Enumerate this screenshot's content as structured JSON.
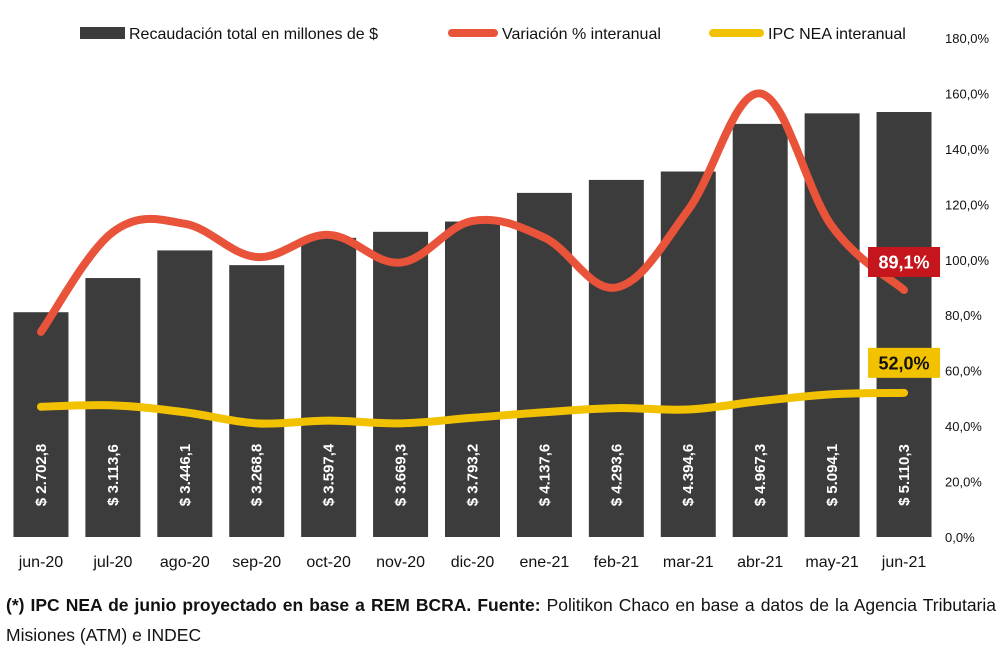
{
  "chart_data": {
    "type": "bar",
    "categories": [
      "jun-20",
      "jul-20",
      "ago-20",
      "sep-20",
      "oct-20",
      "nov-20",
      "dic-20",
      "ene-21",
      "feb-21",
      "mar-21",
      "abr-21",
      "may-21",
      "jun-21"
    ],
    "series": [
      {
        "name": "Recaudación total en millones de $",
        "kind": "bar",
        "color": "#3c3c3c",
        "values": [
          2702.8,
          3113.6,
          3446.1,
          3268.8,
          3597.4,
          3669.3,
          3793.2,
          4137.6,
          4293.6,
          4394.6,
          4967.3,
          5094.1,
          5110.3
        ],
        "labels": [
          "$ 2.702,8",
          "$ 3.113,6",
          "$ 3.446,1",
          "$ 3.268,8",
          "$ 3.597,4",
          "$ 3.669,3",
          "$ 3.793,2",
          "$ 4.137,6",
          "$ 4.293,6",
          "$ 4.394,6",
          "$ 4.967,3",
          "$ 5.094,1",
          "$ 5.110,3"
        ]
      },
      {
        "name": "Variación % interanual",
        "kind": "line",
        "axis": "right",
        "color": "#e8533a",
        "values": [
          74,
          110,
          113,
          101,
          109,
          99,
          114,
          108,
          90,
          118,
          160,
          112,
          89.1
        ]
      },
      {
        "name": "IPC NEA interanual",
        "kind": "line",
        "axis": "right",
        "color": "#f2c200",
        "values": [
          47,
          47.5,
          45,
          41,
          42,
          41,
          43,
          45,
          46.5,
          46,
          49,
          51.5,
          52
        ]
      }
    ],
    "left_axis": {
      "min": 0,
      "max": 6000
    },
    "right_axis": {
      "min": 0,
      "max": 180,
      "ticks": [
        "0,0%",
        "20,0%",
        "40,0%",
        "60,0%",
        "80,0%",
        "100,0%",
        "120,0%",
        "140,0%",
        "160,0%",
        "180,0%"
      ]
    },
    "callouts": [
      {
        "text": "89,1%",
        "series": 1,
        "index": 12,
        "bg": "#c4161c",
        "fg": "#ffffff"
      },
      {
        "text": "52,0%",
        "series": 2,
        "index": 12,
        "bg": "#f2c200",
        "fg": "#111111"
      }
    ],
    "legend_position": "top"
  },
  "caption": {
    "bold": "(*) IPC NEA de junio proyectado en base a REM BCRA. Fuente:",
    "normal": " Politikon Chaco en base a datos de la Agencia Tributaria Misiones (ATM) e INDEC"
  }
}
